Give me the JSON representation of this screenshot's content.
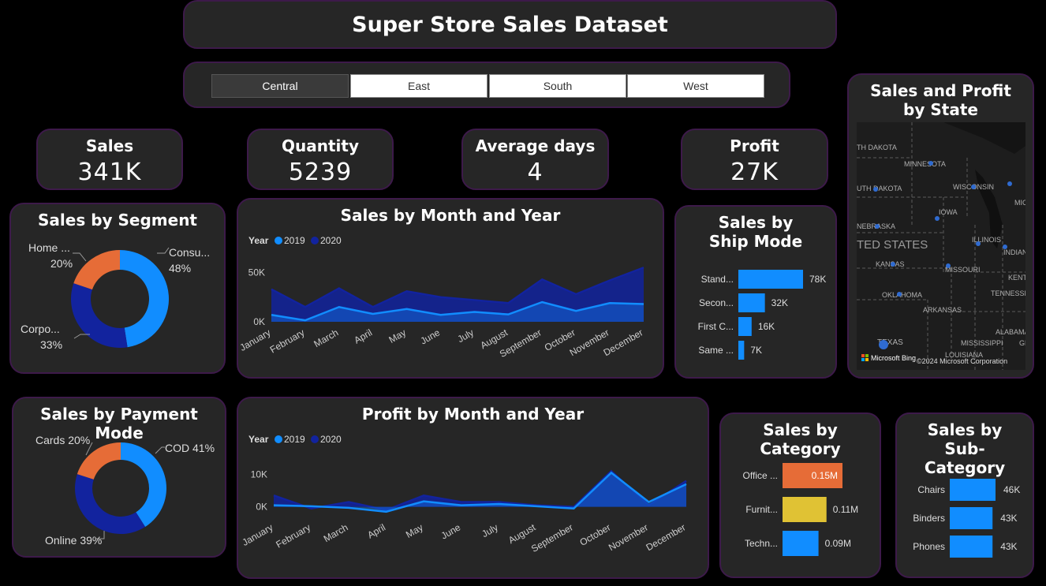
{
  "title": "Super Store Sales Dataset",
  "slicer": {
    "options": [
      "Central",
      "East",
      "South",
      "West"
    ],
    "selected": "Central"
  },
  "kpis": {
    "sales": {
      "label": "Sales",
      "value": "341K"
    },
    "quantity": {
      "label": "Quantity",
      "value": "5239"
    },
    "avg_days": {
      "label": "Average days",
      "value": "4"
    },
    "profit": {
      "label": "Profit",
      "value": "27K"
    }
  },
  "colors": {
    "c2019": "#118dff",
    "c2020": "#12239e",
    "orange": "#e66c37",
    "yellow": "#e0c234",
    "accent_border": "#3d1a4a"
  },
  "map": {
    "title": "Sales and Profit by State",
    "labels": [
      "TH DAKOTA",
      "MINNESOTA",
      "UTH DAKOTA",
      "WISCONSIN",
      "MICHI",
      "IOWA",
      "NEBRASKA",
      "ILLINOIS",
      "INDIANA",
      "TED STATES",
      "KANSAS",
      "MISSOURI",
      "KENTUC",
      "OKLAHOMA",
      "TENNESSEE",
      "ARKANSAS",
      "ALABAMA",
      "TEXAS",
      "MISSISSIPPI",
      "LOUISIANA",
      "GE"
    ],
    "attribution_brand": "Microsoft Bing",
    "attribution_copy": "©2024 Microsoft Corporation"
  },
  "chart_data": [
    {
      "id": "segment",
      "type": "pie",
      "title": "Sales by Segment",
      "labels": [
        "Consu...",
        "Corpo...",
        "Home ..."
      ],
      "values": [
        48,
        33,
        20
      ],
      "value_labels": [
        "48%",
        "33%",
        "20%"
      ],
      "colors": [
        "#118dff",
        "#12239e",
        "#e66c37"
      ]
    },
    {
      "id": "sales_month",
      "type": "area",
      "title": "Sales by Month and Year",
      "legend_title": "Year",
      "categories": [
        "January",
        "February",
        "March",
        "April",
        "May",
        "June",
        "July",
        "August",
        "September",
        "October",
        "November",
        "December"
      ],
      "series": [
        {
          "name": "2019",
          "values": [
            7000,
            1500,
            15000,
            8000,
            13000,
            7000,
            10000,
            7500,
            20000,
            11000,
            19000,
            18000
          ]
        },
        {
          "name": "2020",
          "values": [
            33000,
            15000,
            34000,
            15000,
            31000,
            25000,
            22000,
            19000,
            43000,
            28000,
            42000,
            55000
          ]
        }
      ],
      "yticks": [
        "0K",
        "50K"
      ],
      "ylim": [
        0,
        60000
      ]
    },
    {
      "id": "ship_mode",
      "type": "bar",
      "title": "Sales by Ship Mode",
      "categories": [
        "Stand...",
        "Secon...",
        "First C...",
        "Same ..."
      ],
      "values": [
        78,
        32,
        16,
        7
      ],
      "value_labels": [
        "78K",
        "32K",
        "16K",
        "7K"
      ]
    },
    {
      "id": "payment",
      "type": "pie",
      "title": "Sales by Payment Mode",
      "labels": [
        "COD",
        "Online",
        "Cards"
      ],
      "values": [
        41,
        39,
        20
      ],
      "value_labels": [
        "COD 41%",
        "Online 39%",
        "Cards 20%"
      ],
      "colors": [
        "#118dff",
        "#12239e",
        "#e66c37"
      ]
    },
    {
      "id": "profit_month",
      "type": "area",
      "title": "Profit by Month and Year",
      "legend_title": "Year",
      "categories": [
        "January",
        "February",
        "March",
        "April",
        "May",
        "June",
        "July",
        "August",
        "September",
        "October",
        "November",
        "December"
      ],
      "series": [
        {
          "name": "2019",
          "values": [
            500,
            200,
            -300,
            -1500,
            1700,
            500,
            900,
            200,
            -500,
            10500,
            1500,
            7000
          ]
        },
        {
          "name": "2020",
          "values": [
            3500,
            -500,
            1500,
            -1000,
            3500,
            1500,
            1500,
            500,
            0,
            11000,
            500,
            8000
          ]
        }
      ],
      "yticks": [
        "0K",
        "10K"
      ],
      "ylim": [
        -3000,
        14000
      ]
    },
    {
      "id": "category",
      "type": "bar",
      "title": "Sales by Category",
      "categories": [
        "Office ...",
        "Furnit...",
        "Techn..."
      ],
      "values": [
        0.15,
        0.11,
        0.09
      ],
      "value_labels": [
        "0.15M",
        "0.11M",
        "0.09M"
      ],
      "colors": [
        "#e66c37",
        "#e0c234",
        "#118dff"
      ]
    },
    {
      "id": "subcategory",
      "type": "bar",
      "title": "Sales by Sub-Category",
      "categories": [
        "Chairs",
        "Binders",
        "Phones"
      ],
      "values": [
        46,
        43,
        43
      ],
      "value_labels": [
        "46K",
        "43K",
        "43K"
      ]
    }
  ]
}
